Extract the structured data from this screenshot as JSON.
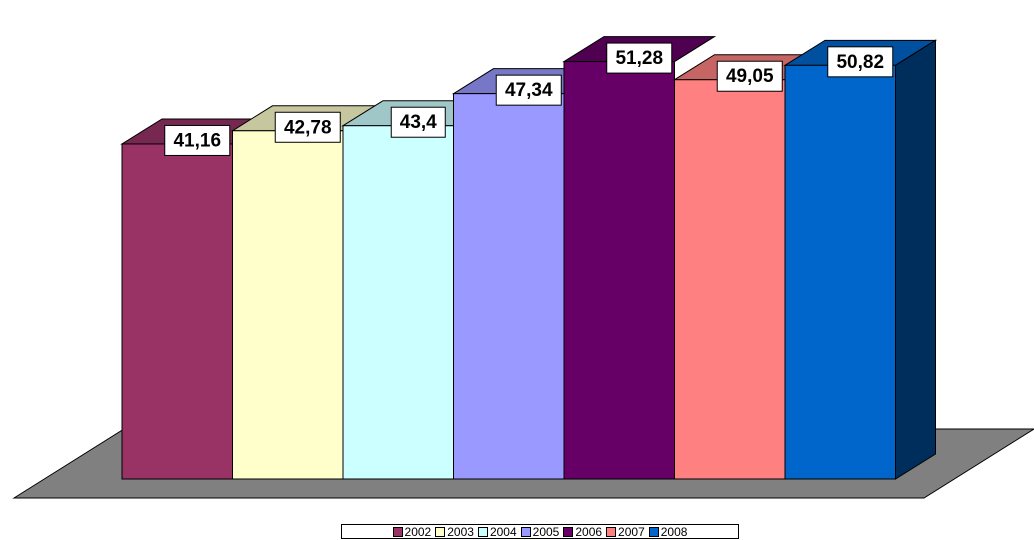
{
  "chart_data": {
    "type": "bar",
    "style": "3d-column",
    "categories": [
      "2002",
      "2003",
      "2004",
      "2005",
      "2006",
      "2007",
      "2008"
    ],
    "values": [
      41.16,
      42.78,
      43.4,
      47.34,
      51.28,
      49.05,
      50.82
    ],
    "data_labels": [
      "41,16",
      "42,78",
      "43,4",
      "47,34",
      "51,28",
      "49,05",
      "50,82"
    ],
    "colors": [
      "#993366",
      "#FFFFCC",
      "#CCFFFF",
      "#9999FF",
      "#660066",
      "#FF8080",
      "#0066CC"
    ],
    "floor_color": "#808080",
    "legend": {
      "position": "bottom",
      "entries": [
        "2002",
        "2003",
        "2004",
        "2005",
        "2006",
        "2007",
        "2008"
      ]
    },
    "title": "",
    "xlabel": "",
    "ylabel": "",
    "ylim": [
      0,
      55
    ],
    "grid": false
  }
}
